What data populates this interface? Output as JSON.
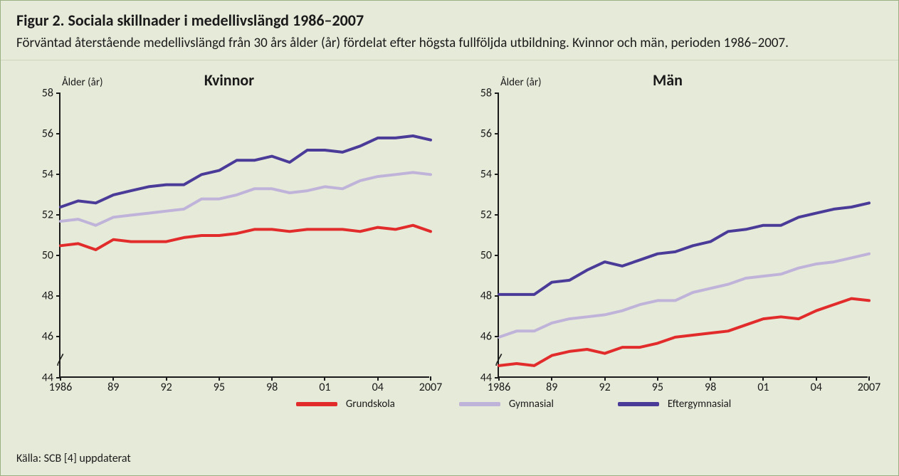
{
  "title": "Figur 2. Sociala skillnader i medellivslängd 1986–2007",
  "subtitle": "Förväntad återstående medellivslängd från 30 års ålder (år) fördelat efter högsta fullföljda utbildning. Kvinnor och män, perioden 1986–2007.",
  "source": "Källa: SCB [4] uppdaterat",
  "colors": {
    "grundskola": "#e22b2b",
    "gymnasial": "#bfb3d9",
    "eftergymnasial": "#4a3b99",
    "axis": "#1a1a1a",
    "panel_bg": "#e6ead9"
  },
  "legend": {
    "grundskola": "Grundskola",
    "gymnasial": "Gymnasial",
    "eftergymnasial": "Eftergymnasial"
  },
  "axis": {
    "y_label": "Ålder (år)",
    "ylim": [
      44,
      58
    ],
    "yticks": [
      44,
      46,
      48,
      50,
      52,
      54,
      56,
      58
    ],
    "xlim": [
      1986,
      2007
    ],
    "xticks": [
      1986,
      1989,
      1992,
      1995,
      1998,
      2001,
      2004,
      2007
    ],
    "xtick_labels": [
      "1986",
      "89",
      "92",
      "95",
      "98",
      "01",
      "04",
      "2007"
    ],
    "line_width": 4,
    "label_fontsize": 16,
    "title_fontsize": 22
  },
  "panels": [
    {
      "key": "kvinnor",
      "title": "Kvinnor",
      "series": {
        "eftergymnasial": [
          52.4,
          52.7,
          52.6,
          53.0,
          53.2,
          53.4,
          53.5,
          53.5,
          54.0,
          54.2,
          54.7,
          54.7,
          54.9,
          54.6,
          55.2,
          55.2,
          55.1,
          55.4,
          55.8,
          55.8,
          55.9,
          55.7
        ],
        "gymnasial": [
          51.7,
          51.8,
          51.5,
          51.9,
          52.0,
          52.1,
          52.2,
          52.3,
          52.8,
          52.8,
          53.0,
          53.3,
          53.3,
          53.1,
          53.2,
          53.4,
          53.3,
          53.7,
          53.9,
          54.0,
          54.1,
          54.0
        ],
        "grundskola": [
          50.5,
          50.6,
          50.3,
          50.8,
          50.7,
          50.7,
          50.7,
          50.9,
          51.0,
          51.0,
          51.1,
          51.3,
          51.3,
          51.2,
          51.3,
          51.3,
          51.3,
          51.2,
          51.4,
          51.3,
          51.5,
          51.2
        ]
      }
    },
    {
      "key": "man",
      "title": "Män",
      "series": {
        "eftergymnasial": [
          48.1,
          48.1,
          48.1,
          48.7,
          48.8,
          49.3,
          49.7,
          49.5,
          49.8,
          50.1,
          50.2,
          50.5,
          50.7,
          51.2,
          51.3,
          51.5,
          51.5,
          51.9,
          52.1,
          52.3,
          52.4,
          52.6
        ],
        "gymnasial": [
          46.0,
          46.3,
          46.3,
          46.7,
          46.9,
          47.0,
          47.1,
          47.3,
          47.6,
          47.8,
          47.8,
          48.2,
          48.4,
          48.6,
          48.9,
          49.0,
          49.1,
          49.4,
          49.6,
          49.7,
          49.9,
          50.1
        ],
        "grundskola": [
          44.6,
          44.7,
          44.6,
          45.1,
          45.3,
          45.4,
          45.2,
          45.5,
          45.5,
          45.7,
          46.0,
          46.1,
          46.2,
          46.3,
          46.6,
          46.9,
          47.0,
          46.9,
          47.3,
          47.6,
          47.9,
          47.8
        ]
      }
    }
  ],
  "years": [
    1986,
    1987,
    1988,
    1989,
    1990,
    1991,
    1992,
    1993,
    1994,
    1995,
    1996,
    1997,
    1998,
    1999,
    2000,
    2001,
    2002,
    2003,
    2004,
    2005,
    2006,
    2007
  ]
}
